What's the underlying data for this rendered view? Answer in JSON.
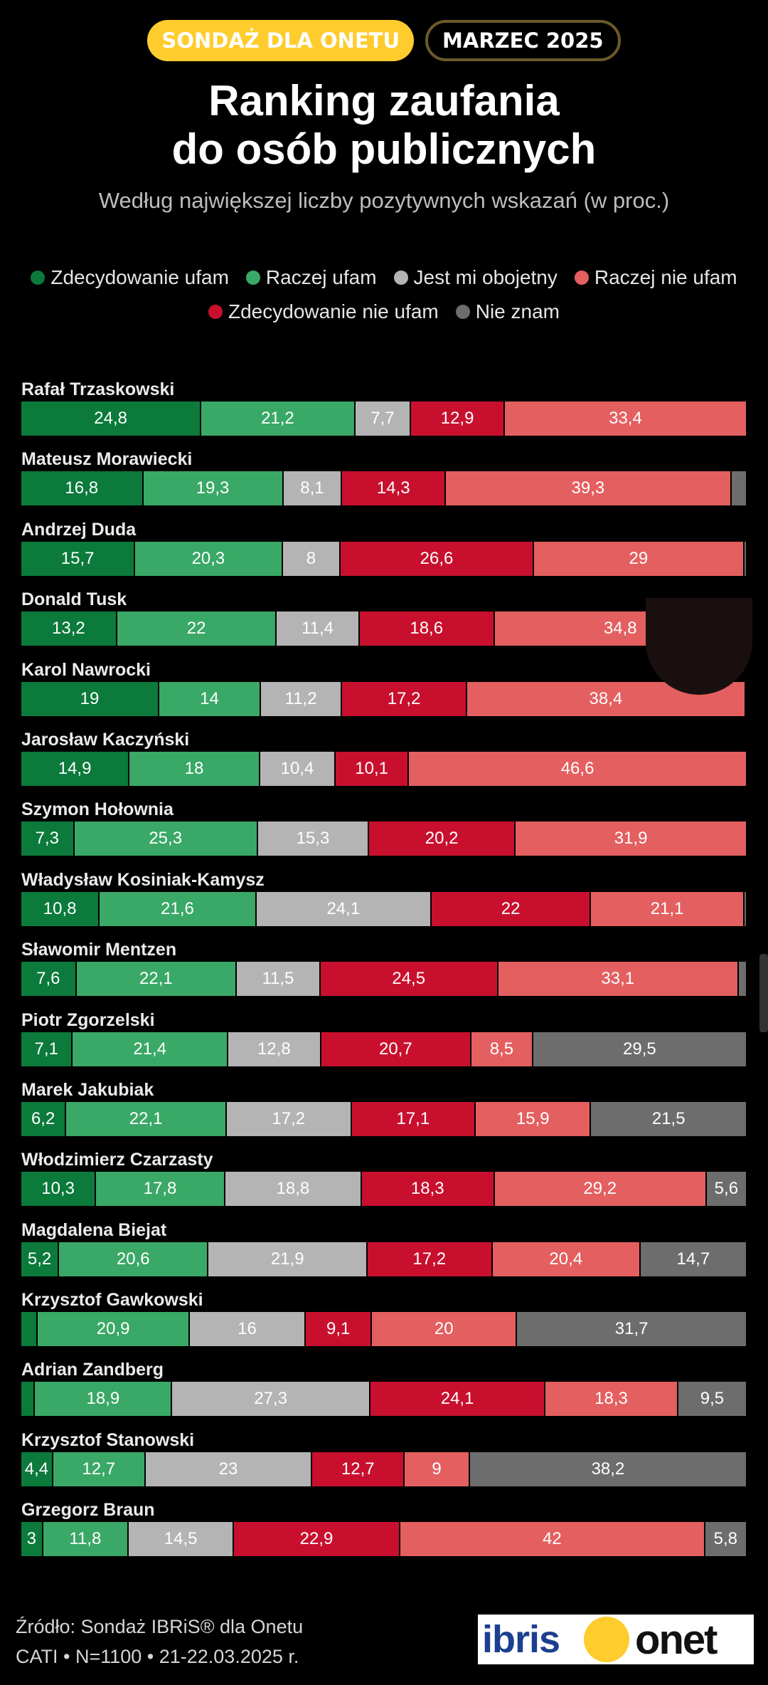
{
  "header": {
    "badge_primary": "SONDAŻ DLA ONETU",
    "badge_date": "MARZEC 2025",
    "title_line1": "Ranking zaufania",
    "title_line2": "do osób publicznych",
    "subtitle": "Według największej liczby pozytywnych wskazań (w proc.)"
  },
  "colors": {
    "strong_trust": "#0b7a3b",
    "trust": "#3aa866",
    "indifferent": "#b4b4b4",
    "distrust": "#e45f60",
    "strong_distrust": "#c8102e",
    "unknown": "#6d6d6d"
  },
  "legend": [
    {
      "key": "strong_trust",
      "label": "Zdecydowanie ufam"
    },
    {
      "key": "trust",
      "label": "Raczej ufam"
    },
    {
      "key": "indifferent",
      "label": "Jest mi obojetny"
    },
    {
      "key": "distrust",
      "label": "Raczej nie ufam"
    },
    {
      "key": "strong_distrust",
      "label": "Zdecydowanie nie ufam"
    },
    {
      "key": "unknown",
      "label": "Nie znam"
    }
  ],
  "chart_data": {
    "type": "bar",
    "orientation": "horizontal-stacked-100",
    "title": "Ranking zaufania do osób publicznych",
    "subtitle": "Według największej liczby pozytywnych wskazań (w proc.)",
    "series_order": [
      "strong_trust",
      "trust",
      "indifferent",
      "strong_distrust",
      "distrust",
      "unknown"
    ],
    "categories": [
      "Rafał Trzaskowski",
      "Mateusz Morawiecki",
      "Andrzej Duda",
      "Donald Tusk",
      "Karol Nawrocki",
      "Jarosław Kaczyński",
      "Szymon Hołownia",
      "Władysław Kosiniak-Kamysz",
      "Sławomir Mentzen",
      "Piotr Zgorzelski",
      "Marek Jakubiak",
      "Włodzimierz Czarzasty",
      "Magdalena Biejat",
      "Krzysztof Gawkowski",
      "Adrian Zandberg",
      "Krzysztof Stanowski",
      "Grzegorz Braun"
    ],
    "rows": [
      {
        "name": "Rafał Trzaskowski",
        "values": [
          24.8,
          21.2,
          7.7,
          12.9,
          33.4,
          0
        ],
        "labels": [
          "24,8",
          "21,2",
          "7,7",
          "12,9",
          "33,4",
          ""
        ]
      },
      {
        "name": "Mateusz Morawiecki",
        "values": [
          16.8,
          19.3,
          8.1,
          14.3,
          39.3,
          2.2
        ],
        "labels": [
          "16,8",
          "19,3",
          "8,1",
          "14,3",
          "39,3",
          ""
        ]
      },
      {
        "name": "Andrzej Duda",
        "values": [
          15.7,
          20.3,
          8,
          26.6,
          29,
          0.4
        ],
        "labels": [
          "15,7",
          "20,3",
          "8",
          "26,6",
          "29",
          ""
        ]
      },
      {
        "name": "Donald Tusk",
        "values": [
          13.2,
          22,
          11.4,
          18.6,
          34.8,
          0
        ],
        "labels": [
          "13,2",
          "22",
          "11,4",
          "18,6",
          "34,8",
          ""
        ]
      },
      {
        "name": "Karol Nawrocki",
        "values": [
          19,
          14,
          11.2,
          17.2,
          38.4,
          0.2
        ],
        "labels": [
          "19",
          "14",
          "11,2",
          "17,2",
          "38,4",
          ""
        ]
      },
      {
        "name": "Jarosław Kaczyński",
        "values": [
          14.9,
          18,
          10.4,
          10.1,
          46.6,
          0
        ],
        "labels": [
          "14,9",
          "18",
          "10,4",
          "10,1",
          "46,6",
          ""
        ]
      },
      {
        "name": "Szymon Hołownia",
        "values": [
          7.3,
          25.3,
          15.3,
          20.2,
          31.9,
          0
        ],
        "labels": [
          "7,3",
          "25,3",
          "15,3",
          "20,2",
          "31,9",
          ""
        ]
      },
      {
        "name": "Władysław Kosiniak-Kamysz",
        "values": [
          10.8,
          21.6,
          24.1,
          22,
          21.1,
          0.4
        ],
        "labels": [
          "10,8",
          "21,6",
          "24,1",
          "22",
          "21,1",
          ""
        ]
      },
      {
        "name": "Sławomir Mentzen",
        "values": [
          7.6,
          22.1,
          11.5,
          24.5,
          33.1,
          1.2
        ],
        "labels": [
          "7,6",
          "22,1",
          "11,5",
          "24,5",
          "33,1",
          ""
        ]
      },
      {
        "name": "Piotr Zgorzelski",
        "values": [
          7.1,
          21.4,
          12.8,
          20.7,
          8.5,
          29.5
        ],
        "labels": [
          "7,1",
          "21,4",
          "12,8",
          "20,7",
          "8,5",
          "29,5"
        ]
      },
      {
        "name": "Marek Jakubiak",
        "values": [
          6.2,
          22.1,
          17.2,
          17.1,
          15.9,
          21.5
        ],
        "labels": [
          "6,2",
          "22,1",
          "17,2",
          "17,1",
          "15,9",
          "21,5"
        ]
      },
      {
        "name": "Włodzimierz Czarzasty",
        "values": [
          10.3,
          17.8,
          18.8,
          18.3,
          29.2,
          5.6
        ],
        "labels": [
          "10,3",
          "17,8",
          "18,8",
          "18,3",
          "29,2",
          "5,6"
        ]
      },
      {
        "name": "Magdalena Biejat",
        "values": [
          5.2,
          20.6,
          21.9,
          17.2,
          20.4,
          14.7
        ],
        "labels": [
          "5,2",
          "20,6",
          "21,9",
          "17,2",
          "20,4",
          "14,7"
        ]
      },
      {
        "name": "Krzysztof Gawkowski",
        "values": [
          2.3,
          20.9,
          16,
          9.1,
          20,
          31.7
        ],
        "labels": [
          "",
          "20,9",
          "16",
          "9,1",
          "20",
          "31,7"
        ]
      },
      {
        "name": "Adrian Zandberg",
        "values": [
          1.9,
          18.9,
          27.3,
          24.1,
          18.3,
          9.5
        ],
        "labels": [
          "",
          "18,9",
          "27,3",
          "24,1",
          "18,3",
          "9,5"
        ]
      },
      {
        "name": "Krzysztof Stanowski",
        "values": [
          4.4,
          12.7,
          23,
          12.7,
          9,
          38.2
        ],
        "labels": [
          "4,4",
          "12,7",
          "23",
          "12,7",
          "9",
          "38,2"
        ]
      },
      {
        "name": "Grzegorz Braun",
        "values": [
          3,
          11.8,
          14.5,
          22.9,
          42,
          5.8
        ],
        "labels": [
          "3",
          "11,8",
          "14,5",
          "22,9",
          "42",
          "5,8"
        ]
      }
    ],
    "xlim": [
      0,
      100
    ],
    "xlabel": "",
    "ylabel": ""
  },
  "footer": {
    "source": "Źródło: Sondaż IBRiS® dla Onetu",
    "meta": "CATI • N=1100 • 21-22.03.2025 r.",
    "logo_ibris": "ibris",
    "logo_onet": "onet"
  }
}
